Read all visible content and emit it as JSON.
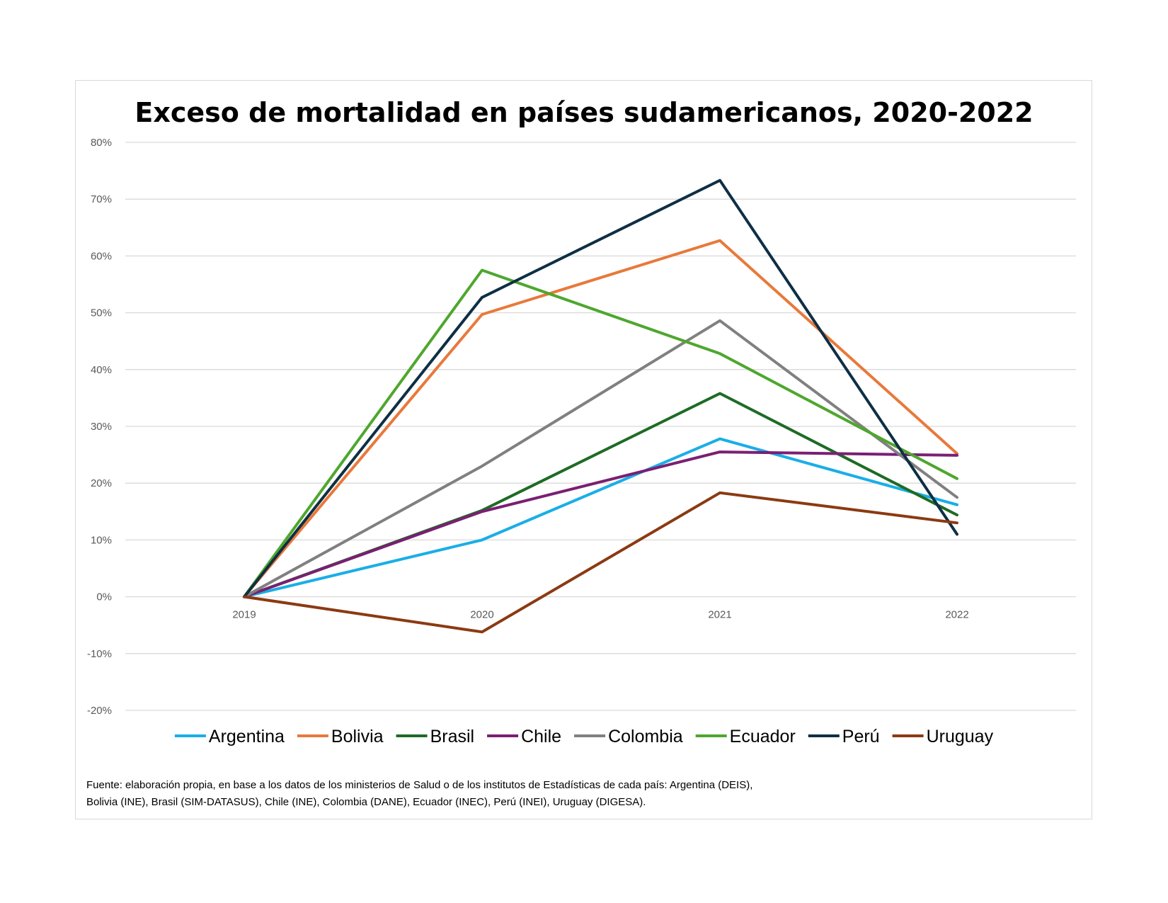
{
  "chart_data": {
    "type": "line",
    "title": "Exceso de mortalidad en países sudamericanos, 2020-2022",
    "x": [
      "2019",
      "2020",
      "2021",
      "2022"
    ],
    "ylim": [
      -0.2,
      0.8
    ],
    "yticks": [
      0.8,
      0.7,
      0.6,
      0.5,
      0.4,
      0.3,
      0.2,
      0.1,
      0,
      -0.1,
      -0.2
    ],
    "ytick_labels": [
      "80%",
      "70%",
      "60%",
      "50%",
      "40%",
      "30%",
      "20%",
      "10%",
      "0%",
      "-10%",
      "-20%"
    ],
    "grid": true,
    "legend_position": "bottom",
    "series": [
      {
        "name": "Argentina",
        "color": "#1aaee6",
        "values": [
          0,
          0.1,
          0.278,
          0.162
        ]
      },
      {
        "name": "Bolivia",
        "color": "#e8793b",
        "values": [
          0,
          0.497,
          0.627,
          0.252
        ]
      },
      {
        "name": "Brasil",
        "color": "#1e6b25",
        "values": [
          0,
          0.152,
          0.358,
          0.144
        ]
      },
      {
        "name": "Chile",
        "color": "#7a1f73",
        "values": [
          0,
          0.15,
          0.255,
          0.249
        ]
      },
      {
        "name": "Colombia",
        "color": "#808080",
        "values": [
          0,
          0.23,
          0.486,
          0.175
        ]
      },
      {
        "name": "Ecuador",
        "color": "#4ea72e",
        "values": [
          0,
          0.575,
          0.428,
          0.208
        ]
      },
      {
        "name": "Perú",
        "color": "#0e2f44",
        "values": [
          0,
          0.527,
          0.733,
          0.11
        ]
      },
      {
        "name": "Uruguay",
        "color": "#8b3a12",
        "values": [
          0,
          -0.062,
          0.183,
          0.13
        ]
      }
    ]
  },
  "source_note": {
    "line1": "Fuente: elaboración propia, en base a los datos de los ministerios de Salud o de los institutos de Estadísticas de cada país: Argentina (DEIS),",
    "line2": "Bolivia (INE), Brasil (SIM-DATASUS), Chile (INE), Colombia (DANE), Ecuador (INEC), Perú (INEI), Uruguay (DIGESA)."
  }
}
